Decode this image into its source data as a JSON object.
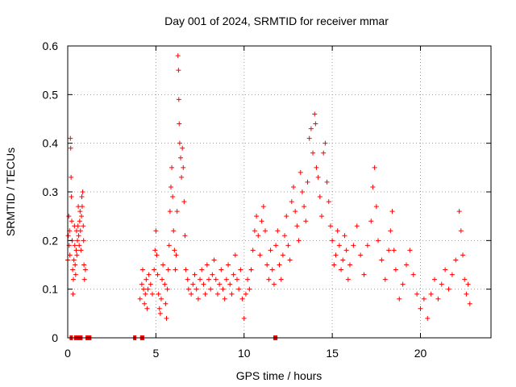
{
  "chart_data": {
    "type": "scatter",
    "title": "Day 001 of 2024, SRMTID for receiver mmar",
    "xlabel": "GPS time / hours",
    "ylabel": "SRMTID / TECUs",
    "xlim": [
      0,
      24
    ],
    "ylim": [
      0,
      0.6
    ],
    "xticks": [
      0,
      5,
      10,
      15,
      20
    ],
    "yticks": [
      0,
      0.1,
      0.2,
      0.3,
      0.4,
      0.5,
      0.6
    ],
    "xtick_labels": [
      "0",
      "5",
      "10",
      "15",
      "20"
    ],
    "ytick_labels": [
      "0",
      "0.1",
      "0.2",
      "0.3",
      "0.4",
      "0.5",
      "0.6"
    ],
    "grid": true,
    "marker": "plus",
    "color": "#ff0000",
    "zero_hours": [
      0.2,
      0.45,
      0.6,
      0.75,
      1.1,
      1.15,
      1.2,
      1.25,
      3.8,
      4.2,
      4.25,
      11.75,
      11.8
    ],
    "series": [
      {
        "name": "SRMTID",
        "points": [
          [
            0.0,
            0.16
          ],
          [
            0.03,
            0.21
          ],
          [
            0.06,
            0.25
          ],
          [
            0.08,
            0.19
          ],
          [
            0.1,
            0.22
          ],
          [
            0.12,
            0.17
          ],
          [
            0.15,
            0.41
          ],
          [
            0.17,
            0.39
          ],
          [
            0.19,
            0.33
          ],
          [
            0.21,
            0.29
          ],
          [
            0.23,
            0.24
          ],
          [
            0.25,
            0.2
          ],
          [
            0.28,
            0.14
          ],
          [
            0.3,
            0.09
          ],
          [
            0.32,
            0.12
          ],
          [
            0.35,
            0.16
          ],
          [
            0.38,
            0.23
          ],
          [
            0.4,
            0.19
          ],
          [
            0.42,
            0.15
          ],
          [
            0.45,
            0.13
          ],
          [
            0.48,
            0.18
          ],
          [
            0.5,
            0.22
          ],
          [
            0.52,
            0.17
          ],
          [
            0.55,
            0.2
          ],
          [
            0.58,
            0.23
          ],
          [
            0.6,
            0.27
          ],
          [
            0.62,
            0.21
          ],
          [
            0.65,
            0.19
          ],
          [
            0.68,
            0.24
          ],
          [
            0.7,
            0.26
          ],
          [
            0.72,
            0.22
          ],
          [
            0.75,
            0.18
          ],
          [
            0.78,
            0.25
          ],
          [
            0.8,
            0.29
          ],
          [
            0.82,
            0.27
          ],
          [
            0.85,
            0.3
          ],
          [
            0.88,
            0.23
          ],
          [
            0.9,
            0.2
          ],
          [
            0.92,
            0.15
          ],
          [
            0.95,
            0.12
          ],
          [
            1.0,
            0.14
          ],
          [
            4.1,
            0.08
          ],
          [
            4.2,
            0.11
          ],
          [
            4.25,
            0.14
          ],
          [
            4.3,
            0.1
          ],
          [
            4.35,
            0.07
          ],
          [
            4.4,
            0.09
          ],
          [
            4.45,
            0.12
          ],
          [
            4.5,
            0.06
          ],
          [
            4.55,
            0.1
          ],
          [
            4.6,
            0.13
          ],
          [
            4.7,
            0.11
          ],
          [
            4.8,
            0.09
          ],
          [
            4.9,
            0.14
          ],
          [
            4.95,
            0.18
          ],
          [
            5.0,
            0.22
          ],
          [
            5.05,
            0.17
          ],
          [
            5.1,
            0.13
          ],
          [
            5.15,
            0.09
          ],
          [
            5.2,
            0.06
          ],
          [
            5.25,
            0.05
          ],
          [
            5.3,
            0.08
          ],
          [
            5.35,
            0.12
          ],
          [
            5.4,
            0.15
          ],
          [
            5.5,
            0.11
          ],
          [
            5.55,
            0.07
          ],
          [
            5.6,
            0.04
          ],
          [
            5.65,
            0.1
          ],
          [
            5.7,
            0.14
          ],
          [
            5.75,
            0.19
          ],
          [
            5.8,
            0.26
          ],
          [
            5.85,
            0.31
          ],
          [
            5.9,
            0.35
          ],
          [
            5.95,
            0.29
          ],
          [
            6.0,
            0.22
          ],
          [
            6.05,
            0.18
          ],
          [
            6.1,
            0.14
          ],
          [
            6.15,
            0.17
          ],
          [
            6.2,
            0.26
          ],
          [
            6.25,
            0.58
          ],
          [
            6.28,
            0.55
          ],
          [
            6.3,
            0.49
          ],
          [
            6.32,
            0.44
          ],
          [
            6.35,
            0.4
          ],
          [
            6.4,
            0.37
          ],
          [
            6.45,
            0.33
          ],
          [
            6.5,
            0.39
          ],
          [
            6.55,
            0.35
          ],
          [
            6.6,
            0.28
          ],
          [
            6.65,
            0.21
          ],
          [
            6.7,
            0.14
          ],
          [
            6.8,
            0.12
          ],
          [
            6.85,
            0.1
          ],
          [
            7.0,
            0.09
          ],
          [
            7.1,
            0.11
          ],
          [
            7.2,
            0.13
          ],
          [
            7.3,
            0.1
          ],
          [
            7.4,
            0.08
          ],
          [
            7.5,
            0.12
          ],
          [
            7.6,
            0.14
          ],
          [
            7.7,
            0.11
          ],
          [
            7.8,
            0.09
          ],
          [
            7.9,
            0.15
          ],
          [
            8.0,
            0.12
          ],
          [
            8.1,
            0.1
          ],
          [
            8.2,
            0.13
          ],
          [
            8.3,
            0.16
          ],
          [
            8.4,
            0.12
          ],
          [
            8.5,
            0.09
          ],
          [
            8.6,
            0.11
          ],
          [
            8.7,
            0.14
          ],
          [
            8.8,
            0.1
          ],
          [
            8.9,
            0.08
          ],
          [
            9.0,
            0.12
          ],
          [
            9.1,
            0.15
          ],
          [
            9.2,
            0.11
          ],
          [
            9.3,
            0.09
          ],
          [
            9.4,
            0.13
          ],
          [
            9.5,
            0.17
          ],
          [
            9.6,
            0.12
          ],
          [
            9.7,
            0.1
          ],
          [
            9.8,
            0.14
          ],
          [
            9.9,
            0.08
          ],
          [
            10.0,
            0.04
          ],
          [
            10.1,
            0.09
          ],
          [
            10.2,
            0.12
          ],
          [
            10.3,
            0.1
          ],
          [
            10.4,
            0.14
          ],
          [
            10.5,
            0.18
          ],
          [
            10.6,
            0.22
          ],
          [
            10.7,
            0.25
          ],
          [
            10.8,
            0.21
          ],
          [
            10.9,
            0.17
          ],
          [
            11.0,
            0.24
          ],
          [
            11.1,
            0.27
          ],
          [
            11.2,
            0.22
          ],
          [
            11.3,
            0.15
          ],
          [
            11.4,
            0.12
          ],
          [
            11.5,
            0.18
          ],
          [
            11.6,
            0.14
          ],
          [
            11.7,
            0.11
          ],
          [
            11.8,
            0.19
          ],
          [
            11.9,
            0.22
          ],
          [
            12.0,
            0.15
          ],
          [
            12.1,
            0.12
          ],
          [
            12.2,
            0.17
          ],
          [
            12.3,
            0.21
          ],
          [
            12.4,
            0.25
          ],
          [
            12.5,
            0.19
          ],
          [
            12.6,
            0.16
          ],
          [
            12.7,
            0.28
          ],
          [
            12.8,
            0.31
          ],
          [
            12.9,
            0.26
          ],
          [
            13.0,
            0.23
          ],
          [
            13.1,
            0.2
          ],
          [
            13.2,
            0.34
          ],
          [
            13.3,
            0.3
          ],
          [
            13.4,
            0.27
          ],
          [
            13.5,
            0.24
          ],
          [
            13.6,
            0.32
          ],
          [
            13.7,
            0.41
          ],
          [
            13.8,
            0.43
          ],
          [
            13.9,
            0.38
          ],
          [
            14.0,
            0.46
          ],
          [
            14.05,
            0.44
          ],
          [
            14.1,
            0.35
          ],
          [
            14.2,
            0.33
          ],
          [
            14.3,
            0.29
          ],
          [
            14.4,
            0.25
          ],
          [
            14.5,
            0.38
          ],
          [
            14.6,
            0.4
          ],
          [
            14.7,
            0.32
          ],
          [
            14.8,
            0.28
          ],
          [
            14.9,
            0.23
          ],
          [
            15.0,
            0.2
          ],
          [
            15.1,
            0.15
          ],
          [
            15.2,
            0.17
          ],
          [
            15.3,
            0.22
          ],
          [
            15.4,
            0.19
          ],
          [
            15.5,
            0.14
          ],
          [
            15.6,
            0.16
          ],
          [
            15.7,
            0.21
          ],
          [
            15.8,
            0.18
          ],
          [
            15.9,
            0.12
          ],
          [
            16.0,
            0.15
          ],
          [
            16.2,
            0.19
          ],
          [
            16.4,
            0.23
          ],
          [
            16.6,
            0.17
          ],
          [
            16.8,
            0.13
          ],
          [
            17.0,
            0.19
          ],
          [
            17.2,
            0.24
          ],
          [
            17.3,
            0.31
          ],
          [
            17.4,
            0.35
          ],
          [
            17.5,
            0.27
          ],
          [
            17.6,
            0.2
          ],
          [
            17.8,
            0.16
          ],
          [
            18.0,
            0.12
          ],
          [
            18.2,
            0.18
          ],
          [
            18.3,
            0.22
          ],
          [
            18.4,
            0.26
          ],
          [
            18.5,
            0.18
          ],
          [
            18.6,
            0.14
          ],
          [
            18.8,
            0.08
          ],
          [
            19.0,
            0.11
          ],
          [
            19.2,
            0.15
          ],
          [
            19.4,
            0.18
          ],
          [
            19.6,
            0.13
          ],
          [
            19.8,
            0.09
          ],
          [
            20.0,
            0.06
          ],
          [
            20.2,
            0.08
          ],
          [
            20.4,
            0.04
          ],
          [
            20.6,
            0.09
          ],
          [
            20.8,
            0.12
          ],
          [
            21.0,
            0.08
          ],
          [
            21.2,
            0.11
          ],
          [
            21.4,
            0.14
          ],
          [
            21.6,
            0.1
          ],
          [
            21.8,
            0.13
          ],
          [
            22.0,
            0.16
          ],
          [
            22.2,
            0.26
          ],
          [
            22.3,
            0.22
          ],
          [
            22.4,
            0.17
          ],
          [
            22.5,
            0.12
          ],
          [
            22.6,
            0.09
          ],
          [
            22.7,
            0.11
          ],
          [
            22.8,
            0.07
          ]
        ]
      }
    ]
  }
}
